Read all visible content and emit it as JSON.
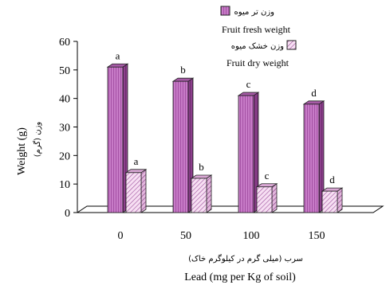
{
  "chart_data": {
    "type": "bar",
    "categories": [
      "0",
      "50",
      "100",
      "150"
    ],
    "series": [
      {
        "name": "Fruit fresh weight",
        "name_fa": "وزن تر میوه",
        "values": [
          51,
          46,
          41,
          38
        ],
        "letters": [
          "a",
          "b",
          "c",
          "d"
        ],
        "color": "#c77bc7"
      },
      {
        "name": "Fruit dry weight",
        "name_fa": "وزن خشک میوه",
        "values": [
          14,
          12,
          9,
          7.5
        ],
        "letters": [
          "a",
          "b",
          "c",
          "d"
        ],
        "color": "#f2d3ee"
      }
    ],
    "ylim": [
      0,
      60
    ],
    "yticks": [
      "0",
      "10",
      "20",
      "30",
      "40",
      "50",
      "60"
    ],
    "ylabel": "Weight (g)",
    "ylabel_fa": "وزن (گرم)",
    "xlabel": "Lead (mg per Kg of soil)",
    "xlabel_fa": "سرب (میلی گرم در کیلوگرم خاک)",
    "legend_position": "top-right"
  }
}
